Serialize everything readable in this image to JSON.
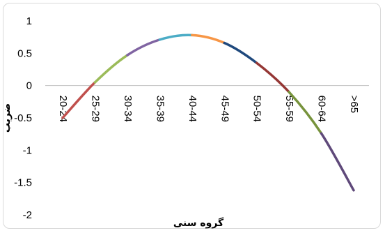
{
  "chart_data": {
    "type": "line",
    "title": "",
    "xlabel": "گروه سنی",
    "ylabel": "ضریب",
    "categories": [
      "20-24",
      "25-29",
      "30-34",
      "35-39",
      "40-44",
      "45-49",
      "50-54",
      "55-59",
      "60-64",
      ">65"
    ],
    "values": [
      -0.5,
      0.05,
      0.47,
      0.71,
      0.78,
      0.66,
      0.35,
      -0.1,
      -0.74,
      -1.62
    ],
    "ylim": [
      -2,
      1
    ],
    "yticks": [
      1,
      0.5,
      0,
      -0.5,
      -1,
      -1.5,
      -2
    ],
    "ytick_labels": [
      "1",
      "0.5",
      "0",
      "-0.5",
      "-1",
      "-1.5",
      "-2"
    ],
    "grid": false,
    "legend": "none",
    "smooth": true,
    "segment_colors": [
      "#c0504d",
      "#9bbb59",
      "#8064a2",
      "#4bacc6",
      "#f79646",
      "#1f497d",
      "#953735",
      "#77933c",
      "#5f497a"
    ]
  }
}
